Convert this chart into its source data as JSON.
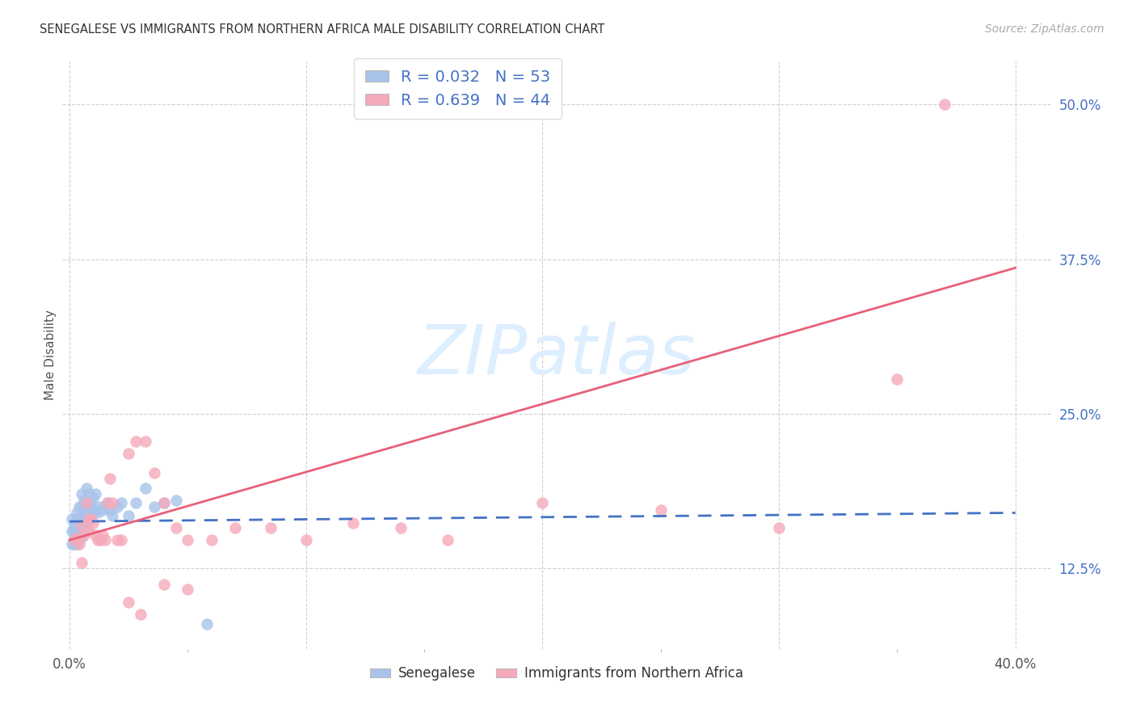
{
  "title": "SENEGALESE VS IMMIGRANTS FROM NORTHERN AFRICA MALE DISABILITY CORRELATION CHART",
  "source": "Source: ZipAtlas.com",
  "ylabel": "Male Disability",
  "xlim": [
    -0.003,
    0.415
  ],
  "ylim": [
    0.06,
    0.535
  ],
  "xtick_positions": [
    0.0,
    0.1,
    0.2,
    0.3,
    0.4
  ],
  "xtick_labels": [
    "0.0%",
    "",
    "",
    "",
    "40.0%"
  ],
  "xtick_minor": [
    0.05,
    0.15,
    0.25,
    0.35
  ],
  "ytick_positions": [
    0.125,
    0.25,
    0.375,
    0.5
  ],
  "ytick_labels": [
    "12.5%",
    "25.0%",
    "37.5%",
    "50.0%"
  ],
  "blue_R": 0.032,
  "blue_N": 53,
  "pink_R": 0.639,
  "pink_N": 44,
  "legend_label_blue": "Senegalese",
  "legend_label_pink": "Immigrants from Northern Africa",
  "blue_color": "#a8c4ea",
  "pink_color": "#f5aabb",
  "blue_line_color": "#4472c4",
  "pink_line_color": "#e8607a",
  "background_color": "#ffffff",
  "grid_color": "#d0d0d0",
  "watermark_color": "#ddeeff",
  "watermark_text": "ZIPatlas",
  "pink_line_x0": 0.0,
  "pink_line_y0": 0.148,
  "pink_line_x1": 0.4,
  "pink_line_y1": 0.368,
  "blue_line_x0": 0.0,
  "blue_line_y0": 0.163,
  "blue_line_x1": 0.4,
  "blue_line_y1": 0.17,
  "senegalese_x": [
    0.001,
    0.001,
    0.001,
    0.002,
    0.002,
    0.002,
    0.002,
    0.003,
    0.003,
    0.003,
    0.003,
    0.003,
    0.004,
    0.004,
    0.004,
    0.004,
    0.005,
    0.005,
    0.005,
    0.005,
    0.005,
    0.006,
    0.006,
    0.006,
    0.007,
    0.007,
    0.007,
    0.007,
    0.008,
    0.008,
    0.008,
    0.009,
    0.009,
    0.01,
    0.01,
    0.011,
    0.011,
    0.012,
    0.013,
    0.014,
    0.015,
    0.016,
    0.017,
    0.018,
    0.02,
    0.022,
    0.025,
    0.028,
    0.032,
    0.036,
    0.04,
    0.045,
    0.058
  ],
  "senegalese_y": [
    0.145,
    0.155,
    0.165,
    0.15,
    0.16,
    0.155,
    0.145,
    0.17,
    0.165,
    0.155,
    0.15,
    0.145,
    0.175,
    0.165,
    0.16,
    0.15,
    0.185,
    0.175,
    0.165,
    0.158,
    0.15,
    0.18,
    0.172,
    0.162,
    0.19,
    0.178,
    0.168,
    0.158,
    0.185,
    0.175,
    0.165,
    0.178,
    0.168,
    0.182,
    0.17,
    0.185,
    0.172,
    0.17,
    0.175,
    0.172,
    0.175,
    0.178,
    0.172,
    0.168,
    0.175,
    0.178,
    0.168,
    0.178,
    0.19,
    0.175,
    0.178,
    0.18,
    0.08
  ],
  "northern_africa_x": [
    0.002,
    0.003,
    0.004,
    0.005,
    0.005,
    0.006,
    0.007,
    0.008,
    0.008,
    0.009,
    0.01,
    0.011,
    0.012,
    0.013,
    0.014,
    0.015,
    0.016,
    0.017,
    0.018,
    0.02,
    0.022,
    0.025,
    0.028,
    0.032,
    0.036,
    0.04,
    0.045,
    0.05,
    0.06,
    0.07,
    0.085,
    0.1,
    0.12,
    0.14,
    0.16,
    0.2,
    0.25,
    0.3,
    0.35,
    0.37,
    0.025,
    0.03,
    0.05,
    0.04
  ],
  "northern_africa_y": [
    0.148,
    0.15,
    0.145,
    0.16,
    0.13,
    0.152,
    0.178,
    0.165,
    0.155,
    0.165,
    0.162,
    0.152,
    0.148,
    0.148,
    0.152,
    0.148,
    0.178,
    0.198,
    0.178,
    0.148,
    0.148,
    0.218,
    0.228,
    0.228,
    0.202,
    0.178,
    0.158,
    0.148,
    0.148,
    0.158,
    0.158,
    0.148,
    0.162,
    0.158,
    0.148,
    0.178,
    0.172,
    0.158,
    0.278,
    0.5,
    0.098,
    0.088,
    0.108,
    0.112
  ]
}
